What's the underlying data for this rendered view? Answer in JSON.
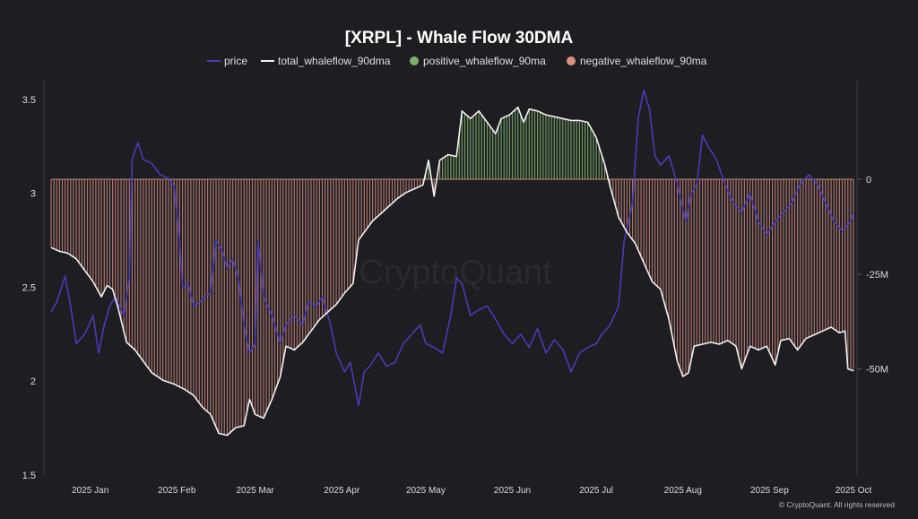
{
  "chart_data": {
    "type": "line",
    "title": "[XRPL] - Whale Flow 30DMA",
    "watermark": "CryptoQuant",
    "footer": "© CryptoQuant. All rights reserved",
    "colors": {
      "background": "#1e1d22",
      "price": "#4b3bb4",
      "total": "#f2f2f2",
      "positive": "#7fb069",
      "negative": "#d99384",
      "axis_text": "#dcdcdc"
    },
    "legend": [
      {
        "name": "price",
        "marker": "line",
        "color": "#4b3bb4"
      },
      {
        "name": "total_whaleflow_90dma",
        "marker": "line",
        "color": "#f2f2f2"
      },
      {
        "name": "positive_whaleflow_90ma",
        "marker": "dot",
        "color": "#7fb069"
      },
      {
        "name": "negative_whaleflow_90ma",
        "marker": "dot",
        "color": "#d99384"
      }
    ],
    "x_range": [
      "2024-12-18",
      "2025-10-01"
    ],
    "x_ticks": [
      {
        "label": "2025 Jan",
        "date": "2025-01-01"
      },
      {
        "label": "2025 Feb",
        "date": "2025-02-01"
      },
      {
        "label": "2025 Mar",
        "date": "2025-03-01"
      },
      {
        "label": "2025 Apr",
        "date": "2025-04-01"
      },
      {
        "label": "2025 May",
        "date": "2025-05-01"
      },
      {
        "label": "2025 Jun",
        "date": "2025-06-01"
      },
      {
        "label": "2025 Jul",
        "date": "2025-07-01"
      },
      {
        "label": "2025 Aug",
        "date": "2025-08-01"
      },
      {
        "label": "2025 Sep",
        "date": "2025-09-01"
      },
      {
        "label": "2025 Oct",
        "date": "2025-10-01"
      }
    ],
    "y_left": {
      "ylim": [
        1.5,
        3.6
      ],
      "ticks": [
        {
          "label": "3.5",
          "value": 3.5
        },
        {
          "label": "3",
          "value": 3
        },
        {
          "label": "2.5",
          "value": 2.5
        },
        {
          "label": "2",
          "value": 2
        },
        {
          "label": "1.5",
          "value": 1.5
        }
      ]
    },
    "y_right": {
      "ylim": [
        -78000000,
        26000000
      ],
      "ticks": [
        {
          "label": "0",
          "value": 0
        },
        {
          "label": "-25M",
          "value": -25000000
        },
        {
          "label": "-50M",
          "value": -50000000
        }
      ]
    },
    "series": [
      {
        "name": "price",
        "axis": "left",
        "points": [
          [
            "2024-12-18",
            2.37
          ],
          [
            "2024-12-20",
            2.42
          ],
          [
            "2024-12-23",
            2.56
          ],
          [
            "2024-12-25",
            2.4
          ],
          [
            "2024-12-27",
            2.2
          ],
          [
            "2024-12-30",
            2.25
          ],
          [
            "2025-01-02",
            2.35
          ],
          [
            "2025-01-04",
            2.15
          ],
          [
            "2025-01-06",
            2.3
          ],
          [
            "2025-01-08",
            2.4
          ],
          [
            "2025-01-10",
            2.45
          ],
          [
            "2025-01-13",
            2.35
          ],
          [
            "2025-01-15",
            2.55
          ],
          [
            "2025-01-16",
            3.18
          ],
          [
            "2025-01-18",
            3.27
          ],
          [
            "2025-01-20",
            3.18
          ],
          [
            "2025-01-23",
            3.16
          ],
          [
            "2025-01-26",
            3.1
          ],
          [
            "2025-01-29",
            3.08
          ],
          [
            "2025-01-31",
            3.04
          ],
          [
            "2025-02-02",
            2.75
          ],
          [
            "2025-02-03",
            2.5
          ],
          [
            "2025-02-05",
            2.52
          ],
          [
            "2025-02-07",
            2.4
          ],
          [
            "2025-02-09",
            2.42
          ],
          [
            "2025-02-11",
            2.45
          ],
          [
            "2025-02-13",
            2.47
          ],
          [
            "2025-02-15",
            2.75
          ],
          [
            "2025-02-17",
            2.7
          ],
          [
            "2025-02-19",
            2.6
          ],
          [
            "2025-02-21",
            2.65
          ],
          [
            "2025-02-23",
            2.55
          ],
          [
            "2025-02-25",
            2.3
          ],
          [
            "2025-02-27",
            2.15
          ],
          [
            "2025-03-01",
            2.2
          ],
          [
            "2025-03-02",
            2.75
          ],
          [
            "2025-03-04",
            2.45
          ],
          [
            "2025-03-07",
            2.35
          ],
          [
            "2025-03-10",
            2.2
          ],
          [
            "2025-03-12",
            2.3
          ],
          [
            "2025-03-15",
            2.35
          ],
          [
            "2025-03-18",
            2.3
          ],
          [
            "2025-03-20",
            2.42
          ],
          [
            "2025-03-23",
            2.4
          ],
          [
            "2025-03-25",
            2.45
          ],
          [
            "2025-03-28",
            2.3
          ],
          [
            "2025-03-30",
            2.15
          ],
          [
            "2025-04-02",
            2.05
          ],
          [
            "2025-04-04",
            2.1
          ],
          [
            "2025-04-07",
            1.87
          ],
          [
            "2025-04-09",
            2.05
          ],
          [
            "2025-04-11",
            2.08
          ],
          [
            "2025-04-14",
            2.15
          ],
          [
            "2025-04-17",
            2.08
          ],
          [
            "2025-04-20",
            2.1
          ],
          [
            "2025-04-23",
            2.2
          ],
          [
            "2025-04-26",
            2.25
          ],
          [
            "2025-04-29",
            2.3
          ],
          [
            "2025-05-01",
            2.2
          ],
          [
            "2025-05-04",
            2.18
          ],
          [
            "2025-05-07",
            2.15
          ],
          [
            "2025-05-10",
            2.35
          ],
          [
            "2025-05-12",
            2.55
          ],
          [
            "2025-05-14",
            2.52
          ],
          [
            "2025-05-17",
            2.35
          ],
          [
            "2025-05-20",
            2.38
          ],
          [
            "2025-05-23",
            2.4
          ],
          [
            "2025-05-26",
            2.33
          ],
          [
            "2025-05-29",
            2.25
          ],
          [
            "2025-06-01",
            2.2
          ],
          [
            "2025-06-04",
            2.25
          ],
          [
            "2025-06-07",
            2.18
          ],
          [
            "2025-06-10",
            2.28
          ],
          [
            "2025-06-13",
            2.15
          ],
          [
            "2025-06-16",
            2.22
          ],
          [
            "2025-06-19",
            2.17
          ],
          [
            "2025-06-22",
            2.05
          ],
          [
            "2025-06-25",
            2.15
          ],
          [
            "2025-06-28",
            2.18
          ],
          [
            "2025-07-01",
            2.2
          ],
          [
            "2025-07-03",
            2.25
          ],
          [
            "2025-07-06",
            2.3
          ],
          [
            "2025-07-09",
            2.4
          ],
          [
            "2025-07-11",
            2.75
          ],
          [
            "2025-07-14",
            2.95
          ],
          [
            "2025-07-16",
            3.4
          ],
          [
            "2025-07-18",
            3.55
          ],
          [
            "2025-07-20",
            3.45
          ],
          [
            "2025-07-22",
            3.2
          ],
          [
            "2025-07-24",
            3.15
          ],
          [
            "2025-07-27",
            3.2
          ],
          [
            "2025-07-30",
            3.05
          ],
          [
            "2025-08-02",
            2.85
          ],
          [
            "2025-08-04",
            3.0
          ],
          [
            "2025-08-06",
            3.05
          ],
          [
            "2025-08-08",
            3.31
          ],
          [
            "2025-08-10",
            3.25
          ],
          [
            "2025-08-13",
            3.18
          ],
          [
            "2025-08-16",
            3.05
          ],
          [
            "2025-08-19",
            2.95
          ],
          [
            "2025-08-22",
            2.9
          ],
          [
            "2025-08-25",
            3.0
          ],
          [
            "2025-08-28",
            2.85
          ],
          [
            "2025-08-31",
            2.78
          ],
          [
            "2025-09-03",
            2.85
          ],
          [
            "2025-09-06",
            2.9
          ],
          [
            "2025-09-09",
            2.95
          ],
          [
            "2025-09-12",
            3.05
          ],
          [
            "2025-09-15",
            3.1
          ],
          [
            "2025-09-18",
            3.05
          ],
          [
            "2025-09-21",
            2.95
          ],
          [
            "2025-09-24",
            2.85
          ],
          [
            "2025-09-27",
            2.8
          ],
          [
            "2025-09-30",
            2.85
          ],
          [
            "2025-10-01",
            2.9
          ]
        ]
      },
      {
        "name": "total_whaleflow_90dma",
        "axis": "right",
        "points": [
          [
            "2024-12-18",
            -18000000
          ],
          [
            "2024-12-21",
            -19000000
          ],
          [
            "2024-12-24",
            -19500000
          ],
          [
            "2024-12-27",
            -21000000
          ],
          [
            "2024-12-30",
            -24000000
          ],
          [
            "2025-01-02",
            -27000000
          ],
          [
            "2025-01-05",
            -31000000
          ],
          [
            "2025-01-07",
            -28000000
          ],
          [
            "2025-01-09",
            -29000000
          ],
          [
            "2025-01-11",
            -34000000
          ],
          [
            "2025-01-14",
            -43000000
          ],
          [
            "2025-01-17",
            -45000000
          ],
          [
            "2025-01-20",
            -48000000
          ],
          [
            "2025-01-23",
            -51000000
          ],
          [
            "2025-01-27",
            -53000000
          ],
          [
            "2025-01-31",
            -54000000
          ],
          [
            "2025-02-04",
            -55500000
          ],
          [
            "2025-02-07",
            -57000000
          ],
          [
            "2025-02-10",
            -60000000
          ],
          [
            "2025-02-13",
            -62000000
          ],
          [
            "2025-02-16",
            -67000000
          ],
          [
            "2025-02-19",
            -67500000
          ],
          [
            "2025-02-22",
            -65500000
          ],
          [
            "2025-02-25",
            -65000000
          ],
          [
            "2025-02-27",
            -58000000
          ],
          [
            "2025-03-01",
            -62000000
          ],
          [
            "2025-03-04",
            -63000000
          ],
          [
            "2025-03-07",
            -58000000
          ],
          [
            "2025-03-10",
            -52000000
          ],
          [
            "2025-03-12",
            -44000000
          ],
          [
            "2025-03-15",
            -45000000
          ],
          [
            "2025-03-18",
            -43000000
          ],
          [
            "2025-03-21",
            -40000000
          ],
          [
            "2025-03-24",
            -37000000
          ],
          [
            "2025-03-27",
            -35000000
          ],
          [
            "2025-03-30",
            -33000000
          ],
          [
            "2025-04-02",
            -30000000
          ],
          [
            "2025-04-05",
            -27500000
          ],
          [
            "2025-04-07",
            -16000000
          ],
          [
            "2025-04-09",
            -14000000
          ],
          [
            "2025-04-12",
            -11000000
          ],
          [
            "2025-04-15",
            -9000000
          ],
          [
            "2025-04-18",
            -7000000
          ],
          [
            "2025-04-21",
            -5000000
          ],
          [
            "2025-04-24",
            -3500000
          ],
          [
            "2025-04-27",
            -2500000
          ],
          [
            "2025-04-30",
            -1500000
          ],
          [
            "2025-05-02",
            5000000
          ],
          [
            "2025-05-04",
            -4500000
          ],
          [
            "2025-05-06",
            5000000
          ],
          [
            "2025-05-09",
            6500000
          ],
          [
            "2025-05-12",
            6000000
          ],
          [
            "2025-05-14",
            18000000
          ],
          [
            "2025-05-17",
            16000000
          ],
          [
            "2025-05-20",
            18000000
          ],
          [
            "2025-05-23",
            15000000
          ],
          [
            "2025-05-26",
            12000000
          ],
          [
            "2025-05-28",
            16000000
          ],
          [
            "2025-05-31",
            17000000
          ],
          [
            "2025-06-03",
            19000000
          ],
          [
            "2025-06-05",
            15000000
          ],
          [
            "2025-06-07",
            18500000
          ],
          [
            "2025-06-10",
            18000000
          ],
          [
            "2025-06-13",
            17000000
          ],
          [
            "2025-06-16",
            16500000
          ],
          [
            "2025-06-19",
            16000000
          ],
          [
            "2025-06-22",
            15500000
          ],
          [
            "2025-06-25",
            15500000
          ],
          [
            "2025-06-28",
            15000000
          ],
          [
            "2025-07-01",
            11000000
          ],
          [
            "2025-07-04",
            4000000
          ],
          [
            "2025-07-06",
            -2000000
          ],
          [
            "2025-07-09",
            -10000000
          ],
          [
            "2025-07-12",
            -14000000
          ],
          [
            "2025-07-15",
            -17000000
          ],
          [
            "2025-07-18",
            -22000000
          ],
          [
            "2025-07-21",
            -27000000
          ],
          [
            "2025-07-24",
            -29000000
          ],
          [
            "2025-07-27",
            -37000000
          ],
          [
            "2025-07-30",
            -48000000
          ],
          [
            "2025-08-01",
            -52000000
          ],
          [
            "2025-08-03",
            -51000000
          ],
          [
            "2025-08-05",
            -44000000
          ],
          [
            "2025-08-08",
            -43500000
          ],
          [
            "2025-08-11",
            -43000000
          ],
          [
            "2025-08-14",
            -43500000
          ],
          [
            "2025-08-17",
            -42500000
          ],
          [
            "2025-08-20",
            -44000000
          ],
          [
            "2025-08-22",
            -50000000
          ],
          [
            "2025-08-25",
            -44000000
          ],
          [
            "2025-08-28",
            -45000000
          ],
          [
            "2025-08-31",
            -44000000
          ],
          [
            "2025-09-03",
            -49000000
          ],
          [
            "2025-09-05",
            -42500000
          ],
          [
            "2025-09-08",
            -42000000
          ],
          [
            "2025-09-11",
            -45000000
          ],
          [
            "2025-09-14",
            -42000000
          ],
          [
            "2025-09-17",
            -41000000
          ],
          [
            "2025-09-20",
            -40000000
          ],
          [
            "2025-09-23",
            -39000000
          ],
          [
            "2025-09-26",
            -40500000
          ],
          [
            "2025-09-28",
            -40000000
          ],
          [
            "2025-09-29",
            -50000000
          ],
          [
            "2025-10-01",
            -50500000
          ]
        ]
      }
    ]
  }
}
